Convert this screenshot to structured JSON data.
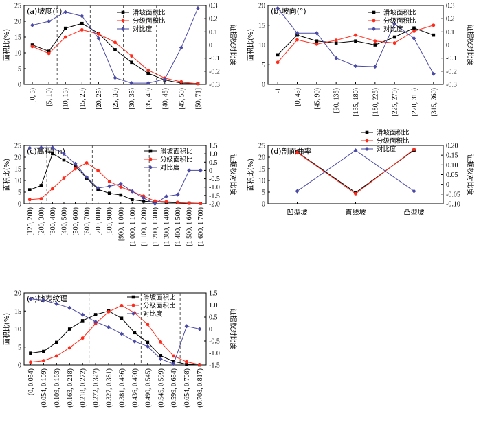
{
  "colors": {
    "series1": "#000000",
    "series2": "#ff2a1a",
    "series3": "#4a4aa6"
  },
  "chart_data": [
    {
      "id": "a",
      "type": "line",
      "title": "(a)坡度(°)",
      "ylabel": "面积比(%)",
      "y2label": "证据权对比度",
      "categories": [
        "[0, 5)",
        "[5, 10)",
        "[10, 15)",
        "[15, 20)",
        "[20, 25)",
        "[25, 30)",
        "[30, 35)",
        "[35, 40)",
        "[40, 45)",
        "[45, 50)",
        "[50, 71]"
      ],
      "ylim": [
        0,
        25
      ],
      "yticks": [
        0,
        5,
        10,
        15,
        20,
        25
      ],
      "y2lim": [
        -0.3,
        0.3
      ],
      "y2ticks": [
        "-0.3",
        "-0.2",
        "-0.1",
        "0",
        "0.1",
        "0.2",
        "0.3"
      ],
      "vlines": [
        2,
        4,
        6,
        8
      ],
      "series": [
        {
          "name": "滑坡面积比",
          "axis": "left",
          "values": [
            12.5,
            10.5,
            17.8,
            19.3,
            16.2,
            11,
            7,
            3.5,
            1.4,
            0.4,
            0.3
          ]
        },
        {
          "name": "分级面积比",
          "axis": "left",
          "values": [
            12,
            9.8,
            15,
            17.3,
            16,
            13.3,
            9,
            4.5,
            2,
            0.8,
            0.2
          ]
        },
        {
          "name": "对比度",
          "axis": "right",
          "values": [
            0.15,
            0.18,
            0.25,
            0.22,
            0.05,
            -0.25,
            -0.29,
            -0.29,
            -0.26,
            -0.02,
            0.28
          ]
        }
      ]
    },
    {
      "id": "b",
      "type": "line",
      "title": "(b)坡向(°)",
      "ylabel": "面积比(%)",
      "y2label": "证据权对比度",
      "categories": [
        "-1",
        "[0, 45)",
        "[45, 90)",
        "[90, 135)",
        "[135, 180)",
        "[180, 225)",
        "[225, 270)",
        "[270, 315)",
        "[315, 360)"
      ],
      "ylim": [
        0,
        20
      ],
      "yticks": [
        0,
        5,
        10,
        15,
        20
      ],
      "y2lim": [
        -0.3,
        0.3
      ],
      "y2ticks": [
        "-0.3",
        "-0.2",
        "-0.1",
        "0",
        "0.1",
        "0.2",
        "0.3"
      ],
      "vlines": [],
      "series": [
        {
          "name": "滑坡面积比",
          "axis": "left",
          "values": [
            7.5,
            12.5,
            11,
            10.5,
            11,
            10,
            12,
            14.3,
            12.5
          ]
        },
        {
          "name": "分级面积比",
          "axis": "left",
          "values": [
            5.6,
            11.3,
            10.2,
            11.2,
            12.5,
            11,
            10.5,
            13.5,
            15
          ]
        },
        {
          "name": "对比度",
          "axis": "right",
          "values": [
            0.28,
            0.09,
            0.09,
            -0.1,
            -0.16,
            -0.165,
            0.16,
            0.05,
            -0.22
          ]
        }
      ]
    },
    {
      "id": "c",
      "type": "line",
      "title": "(c)高程(m)",
      "ylabel": "面积比(%)",
      "y2label": "证据权对比度",
      "categories": [
        "[120, 200)",
        "[200, 300)",
        "[300, 400)",
        "[400, 500)",
        "[500, 600)",
        "[600, 700)",
        "[700, 800)",
        "[800, 900)",
        "[900, 1 000)",
        "[1 000, 1 100)",
        "[1 100, 1 200)",
        "[1 200, 1 300)",
        "[1 300, 1 400)",
        "[1 400, 1 500)",
        "[1 500, 1 600)",
        "[1 600, 1 700)"
      ],
      "ylim": [
        0,
        25
      ],
      "yticks": [
        0,
        5,
        10,
        15,
        20,
        25
      ],
      "y2lim": [
        -2.0,
        1.5
      ],
      "y2ticks": [
        "-2.0",
        "-1.5",
        "-1.0",
        "-0.5",
        "0",
        "0.5",
        "1.0",
        "1.5"
      ],
      "vlines": [
        2,
        6,
        8,
        11
      ],
      "series": [
        {
          "name": "滑坡面积比",
          "axis": "left",
          "values": [
            6,
            7.8,
            21.5,
            18.8,
            16.2,
            11,
            6.2,
            4.5,
            3.8,
            1.8,
            1.1,
            0.8,
            0.6,
            0.4,
            0.3,
            0.2
          ]
        },
        {
          "name": "分级面积比",
          "axis": "left",
          "values": [
            1.8,
            2.2,
            6.5,
            11,
            15,
            17.5,
            14.2,
            9.5,
            7.2,
            5.3,
            3.3,
            1.2,
            0.9,
            0.6,
            0.2,
            0.1
          ]
        },
        {
          "name": "对比度",
          "axis": "right",
          "values": [
            1.35,
            1.37,
            1.37,
            1.0,
            0.4,
            -0.4,
            -1.05,
            -0.95,
            -0.8,
            -1.25,
            -1.65,
            -2.0,
            -1.55,
            -1.45,
            0,
            0
          ]
        }
      ]
    },
    {
      "id": "d",
      "type": "line",
      "title": "(d)剖面曲率",
      "ylabel": "面积比(%)",
      "y2label": "证据权对比度",
      "categories": [
        "凹型坡",
        "直线坡",
        "凸型坡"
      ],
      "ylim": [
        0,
        25
      ],
      "yticks": [
        0,
        5,
        10,
        15,
        20,
        25
      ],
      "y2lim": [
        -0.1,
        0.2
      ],
      "y2ticks": [
        "-0.10",
        "-0.05",
        "0",
        "0.05",
        "0.10",
        "0.15",
        "0.20"
      ],
      "vlines": [],
      "series": [
        {
          "name": "滑坡面积比",
          "axis": "left",
          "values": [
            22.2,
            4.8,
            23
          ]
        },
        {
          "name": "分级面积比",
          "axis": "left",
          "values": [
            22,
            4.3,
            23.3
          ]
        },
        {
          "name": "对比度",
          "axis": "right",
          "values": [
            -0.035,
            0.175,
            -0.035
          ]
        }
      ]
    },
    {
      "id": "e",
      "type": "line",
      "title": "(e)地表纹理",
      "ylabel": "面积比(%)",
      "y2label": "证据权对比度",
      "categories": [
        "(0, 0.054)",
        "(0.054, 0.109)",
        "(0.109, 0.163)",
        "(0.163, 0.218)",
        "(0.218, 0.272)",
        "(0.272, 0.327)",
        "(0.327, 0.381)",
        "(0.381, 0.436)",
        "(0.436, 0.490)",
        "(0.490, 0.545)",
        "(0.545, 0.599)",
        "(0.599, 0.654)",
        "(0.654, 0.708)",
        "(0.708, 0.817)"
      ],
      "ylim": [
        0,
        20
      ],
      "yticks": [
        0,
        5,
        10,
        15,
        20
      ],
      "y2lim": [
        -1.5,
        1.5
      ],
      "y2ticks": [
        "-1.5",
        "-1.0",
        "-0.5",
        "0",
        "0.5",
        "1.0",
        "1.5"
      ],
      "vlines": [
        5,
        9,
        12
      ],
      "series": [
        {
          "name": "滑坡面积比",
          "axis": "left",
          "values": [
            3.3,
            3.8,
            6.3,
            10,
            12.3,
            14,
            15,
            13,
            9,
            6.3,
            2.6,
            1,
            0.2,
            0
          ]
        },
        {
          "name": "分级面积比",
          "axis": "left",
          "values": [
            0.8,
            1.2,
            2.5,
            4.8,
            7.5,
            11.5,
            14.8,
            16.5,
            14.5,
            11.3,
            6.4,
            2.5,
            0.9,
            0.1
          ]
        },
        {
          "name": "对比度",
          "axis": "right",
          "values": [
            1.25,
            1.2,
            1.05,
            0.88,
            0.6,
            0.3,
            0.08,
            -0.2,
            -0.52,
            -0.72,
            -1.25,
            -1.45,
            0.12,
            0.0
          ]
        }
      ]
    }
  ]
}
